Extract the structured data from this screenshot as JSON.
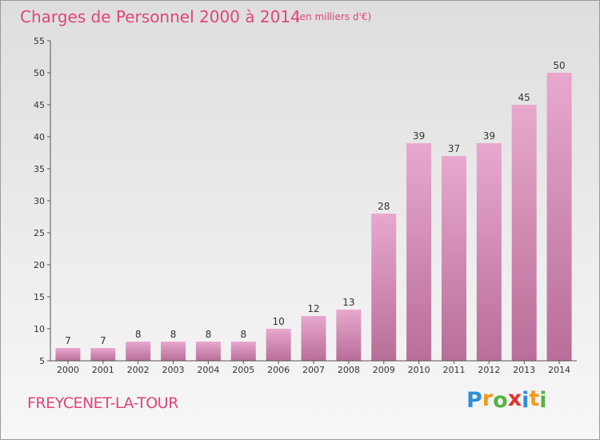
{
  "chart_data": {
    "type": "bar",
    "title": "Charges de Personnel 2000 à 2014",
    "subtitle": "(en milliers d'€)",
    "categories": [
      "2000",
      "2001",
      "2002",
      "2003",
      "2004",
      "2005",
      "2006",
      "2007",
      "2008",
      "2009",
      "2010",
      "2011",
      "2012",
      "2013",
      "2014"
    ],
    "values": [
      7,
      7,
      8,
      8,
      8,
      8,
      10,
      12,
      13,
      28,
      39,
      37,
      39,
      45,
      50
    ],
    "ylim": [
      5,
      55
    ],
    "yticks": [
      5,
      10,
      15,
      20,
      25,
      30,
      35,
      40,
      45,
      50,
      55
    ],
    "grid": false,
    "bar_color_top": "#e8a8cd",
    "bar_color_bottom": "#b86e98",
    "title_color": "#e0457a"
  },
  "footer": {
    "commune": "FREYCENET-LA-TOUR",
    "logo_letters": [
      {
        "ch": "P",
        "color": "#2e8fd6"
      },
      {
        "ch": "r",
        "color": "#f39a1e"
      },
      {
        "ch": "o",
        "color": "#57b347"
      },
      {
        "ch": "x",
        "color": "#e3342f"
      },
      {
        "ch": "i",
        "color": "#2e8fd6"
      },
      {
        "ch": "t",
        "color": "#f39a1e"
      },
      {
        "ch": "i",
        "color": "#57b347"
      }
    ]
  }
}
